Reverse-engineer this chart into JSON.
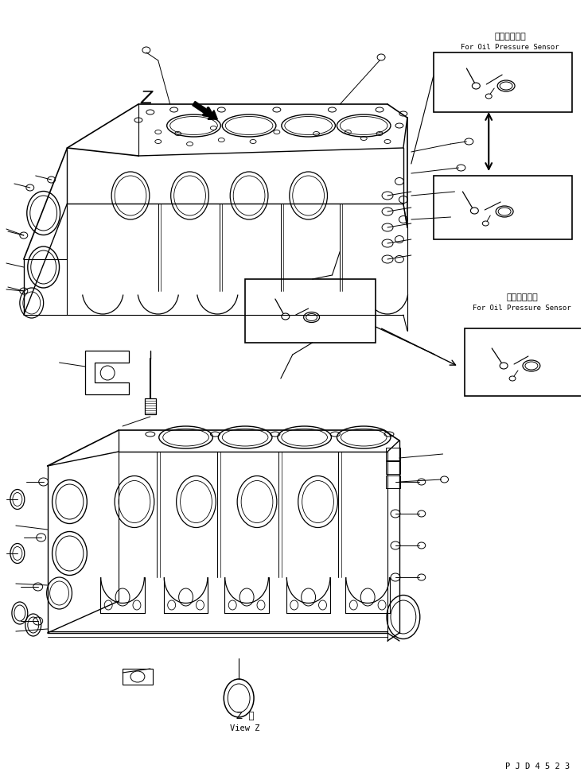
{
  "background_color": "#ffffff",
  "line_color": "#000000",
  "fig_width": 7.34,
  "fig_height": 9.86,
  "dpi": 100,
  "text_jp1": "油圧センサ用",
  "text_en1": "For Oil Pressure Sensor",
  "text_jp2": "油圧センサ用",
  "text_en2": "For Oil Pressure Sensor",
  "text_viewz_jp": "Z  視",
  "text_viewz_en": "View Z",
  "text_partno": "P J D 4 5 2 3",
  "label_z": "Z"
}
